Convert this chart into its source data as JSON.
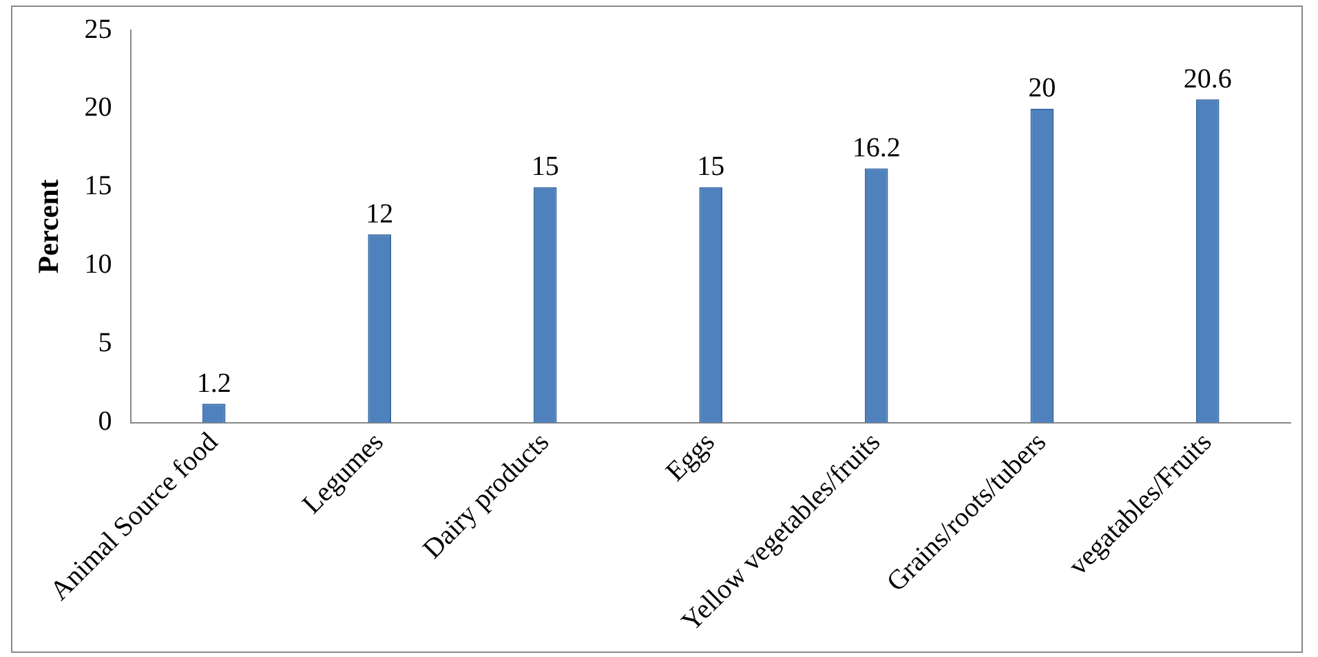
{
  "chart_data": {
    "type": "bar",
    "ylabel": "Percent",
    "categories": [
      "Animal Source food",
      "Legumes",
      "Dairy products",
      "Eggs",
      "Yellow vegetables/fruits",
      "Grains/roots/tubers",
      "vegatables/Fruits"
    ],
    "values": [
      1.2,
      12,
      15,
      15,
      16.2,
      20,
      20.6
    ],
    "color": "#4f81bd",
    "ylim": [
      0,
      25
    ],
    "yticks": [
      0,
      5,
      10,
      15,
      20,
      25
    ],
    "grid": false,
    "legend": false,
    "data_labels": true
  }
}
